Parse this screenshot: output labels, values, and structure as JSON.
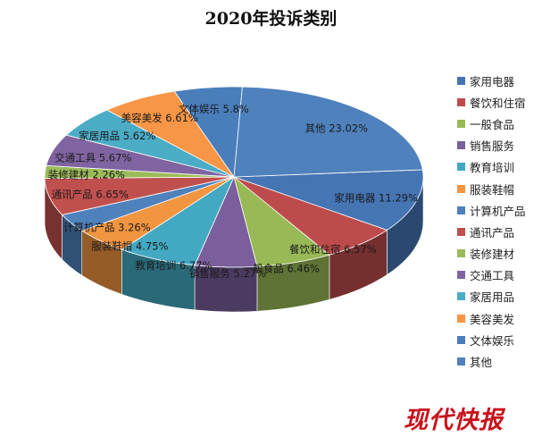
{
  "chart_data": {
    "type": "pie",
    "title": "2020年投诉类别",
    "legend_position": "right",
    "slices": [
      {
        "label": "家用电器",
        "value": 11.29,
        "value_text": "11.29%",
        "color": "#4675b4"
      },
      {
        "label": "餐饮和住宿",
        "value": 6.57,
        "value_text": "6.57%",
        "color": "#bd4b4b"
      },
      {
        "label": "一般食品",
        "value": 6.46,
        "value_text": "6.46%",
        "color": "#98b955"
      },
      {
        "label": "销售服务",
        "value": 5.27,
        "value_text": "5.27%",
        "color": "#7b5f9c"
      },
      {
        "label": "教育培训",
        "value": 6.77,
        "value_text": "6.77%",
        "color": "#43a9c2"
      },
      {
        "label": "服装鞋帽",
        "value": 4.75,
        "value_text": "4.75%",
        "color": "#f19540"
      },
      {
        "label": "计算机产品",
        "value": 3.26,
        "value_text": "3.26%",
        "color": "#4f81bd"
      },
      {
        "label": "通讯产品",
        "value": 6.65,
        "value_text": "6.65%",
        "color": "#c0504d"
      },
      {
        "label": "装修建材",
        "value": 2.26,
        "value_text": "2.26%",
        "color": "#9bbb59"
      },
      {
        "label": "交通工具",
        "value": 5.67,
        "value_text": "5.67%",
        "color": "#8064a2"
      },
      {
        "label": "家居用品",
        "value": 5.62,
        "value_text": "5.62%",
        "color": "#4bacc6"
      },
      {
        "label": "美容美发",
        "value": 6.61,
        "value_text": "6.61%",
        "color": "#f79646"
      },
      {
        "label": "文体娱乐",
        "value": 5.8,
        "value_text": "5.8%",
        "color": "#4a7ebb"
      },
      {
        "label": "其他",
        "value": 23.02,
        "value_text": "23.02%",
        "color": "#4f81bd"
      }
    ]
  },
  "watermark": "现代快报"
}
